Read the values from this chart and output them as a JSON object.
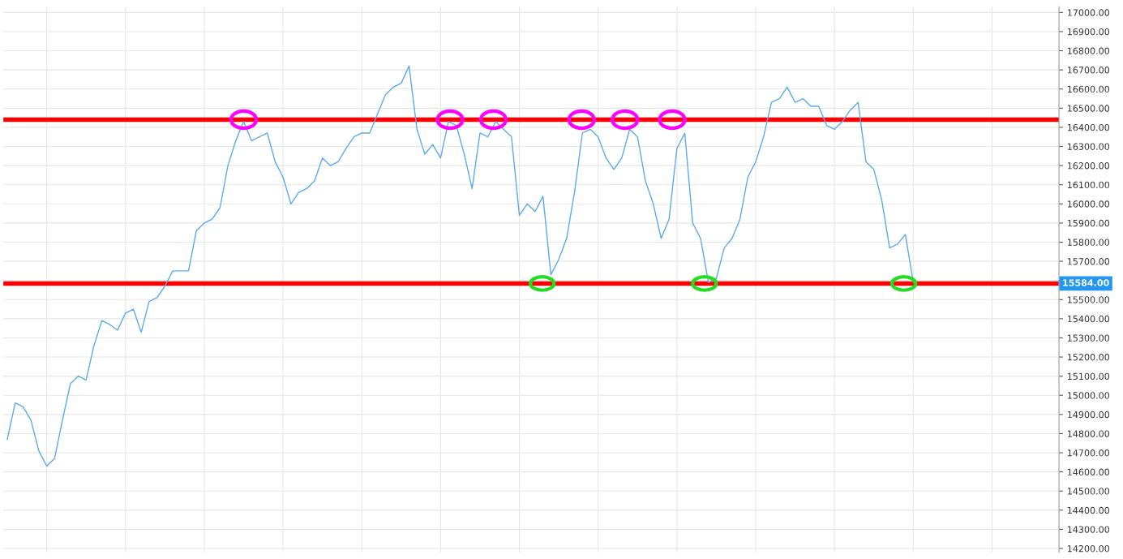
{
  "chart_data": {
    "type": "line",
    "categories": [
      null,
      null,
      null,
      null,
      null,
      null,
      null,
      null,
      null,
      null,
      null,
      null,
      null,
      null,
      null,
      null,
      null,
      null,
      null,
      null,
      null,
      null,
      null,
      null,
      null,
      null,
      null,
      null,
      null,
      null,
      null,
      null,
      null,
      null,
      null,
      null,
      null,
      null,
      null,
      null,
      null,
      null,
      null,
      null,
      null,
      null,
      null,
      null,
      null,
      null,
      null,
      null,
      null,
      null,
      null,
      null,
      null,
      null,
      null,
      null,
      null,
      null,
      null,
      null,
      null,
      null,
      null,
      null,
      null,
      null,
      null,
      null,
      null,
      null,
      null,
      null,
      null,
      null,
      null,
      null,
      null,
      null,
      null,
      null,
      null,
      null,
      null,
      null,
      null,
      null,
      null,
      null,
      null,
      null,
      null,
      null,
      null,
      null,
      null,
      null,
      null,
      null,
      null,
      null,
      null,
      null,
      null,
      null,
      null,
      null,
      null,
      null,
      null,
      null,
      null,
      null,
      null,
      null,
      null,
      null,
      null,
      null,
      null,
      null,
      null,
      null,
      null,
      null,
      null,
      null,
      null,
      null,
      null,
      null
    ],
    "series": [
      {
        "color": "#5aaaf0",
        "values": [
          14770,
          14960,
          14940,
          14870,
          14710,
          14630,
          14670,
          14870,
          15060,
          15100,
          15080,
          15260,
          15390,
          15370,
          15340,
          15430,
          15450,
          15330,
          15490,
          15510,
          15570,
          15650,
          15650,
          15650,
          15860,
          15900,
          15920,
          15980,
          16200,
          16330,
          16430,
          16330,
          16350,
          16370,
          16220,
          16140,
          16000,
          16060,
          16080,
          16120,
          16240,
          16200,
          16220,
          16290,
          16350,
          16370,
          16370,
          16470,
          16570,
          16610,
          16630,
          16720,
          16390,
          16260,
          16310,
          16240,
          16430,
          16410,
          16260,
          16080,
          16370,
          16350,
          16430,
          16390,
          16350,
          15940,
          16000,
          15960,
          16040,
          15630,
          15710,
          15820,
          16060,
          16370,
          16390,
          16350,
          16240,
          16180,
          16240,
          16390,
          16350,
          16120,
          16000,
          15820,
          15920,
          16290,
          16370,
          15900,
          15820,
          15590,
          15610,
          15770,
          15820,
          15920,
          16140,
          16220,
          16350,
          16530,
          16550,
          16610,
          16530,
          16550,
          16510,
          16510,
          16410,
          16390,
          16430,
          16490,
          16530,
          16220,
          16180,
          16020,
          15770,
          15790,
          15840,
          15590,
          null,
          null,
          null,
          null,
          null,
          null,
          null,
          null,
          null,
          null,
          null,
          null,
          null,
          null,
          null,
          null,
          null,
          null
        ]
      }
    ],
    "ylim": [
      14180,
      17030
    ],
    "yticks": [
      {
        "value": 14200,
        "label": "14200.00"
      },
      {
        "value": 14300,
        "label": "14300.00"
      },
      {
        "value": 14400,
        "label": "14400.00"
      },
      {
        "value": 14500,
        "label": "14500.00"
      },
      {
        "value": 14600,
        "label": "14600.00"
      },
      {
        "value": 14700,
        "label": "14700.00"
      },
      {
        "value": 14800,
        "label": "14800.00"
      },
      {
        "value": 14900,
        "label": "14900.00"
      },
      {
        "value": 15000,
        "label": "15000.00"
      },
      {
        "value": 15100,
        "label": "15100.00"
      },
      {
        "value": 15200,
        "label": "15200.00"
      },
      {
        "value": 15300,
        "label": "15300.00"
      },
      {
        "value": 15400,
        "label": "15400.00"
      },
      {
        "value": 15500,
        "label": "15500.00"
      },
      {
        "value": 15600,
        "label": null
      },
      {
        "value": 15700,
        "label": "15700.00"
      },
      {
        "value": 15800,
        "label": "15800.00"
      },
      {
        "value": 15900,
        "label": "15900.00"
      },
      {
        "value": 16000,
        "label": "16000.00"
      },
      {
        "value": 16100,
        "label": "16100.00"
      },
      {
        "value": 16200,
        "label": "16200.00"
      },
      {
        "value": 16300,
        "label": "16300.00"
      },
      {
        "value": 16400,
        "label": "16400.00"
      },
      {
        "value": 16500,
        "label": "16500.00"
      },
      {
        "value": 16600,
        "label": "16600.00"
      },
      {
        "value": 16700,
        "label": "16700.00"
      },
      {
        "value": 16800,
        "label": "16800.00"
      },
      {
        "value": 16900,
        "label": "16900.00"
      },
      {
        "value": 17000,
        "label": "17000.00"
      }
    ],
    "ref_lines": [
      {
        "axis": "y",
        "value": 15584,
        "label": "15584.00",
        "color": "#2196f3",
        "line_style": "dotted"
      },
      {
        "axis": "y",
        "value": 16440,
        "color": "#ff0000",
        "line_style": "solid"
      },
      {
        "axis": "y",
        "value": 15584,
        "color": "#ff0000",
        "line_style": "solid"
      }
    ],
    "tick_labels": "y",
    "grid": true,
    "line_style": "solid",
    "marker": "none"
  }
}
